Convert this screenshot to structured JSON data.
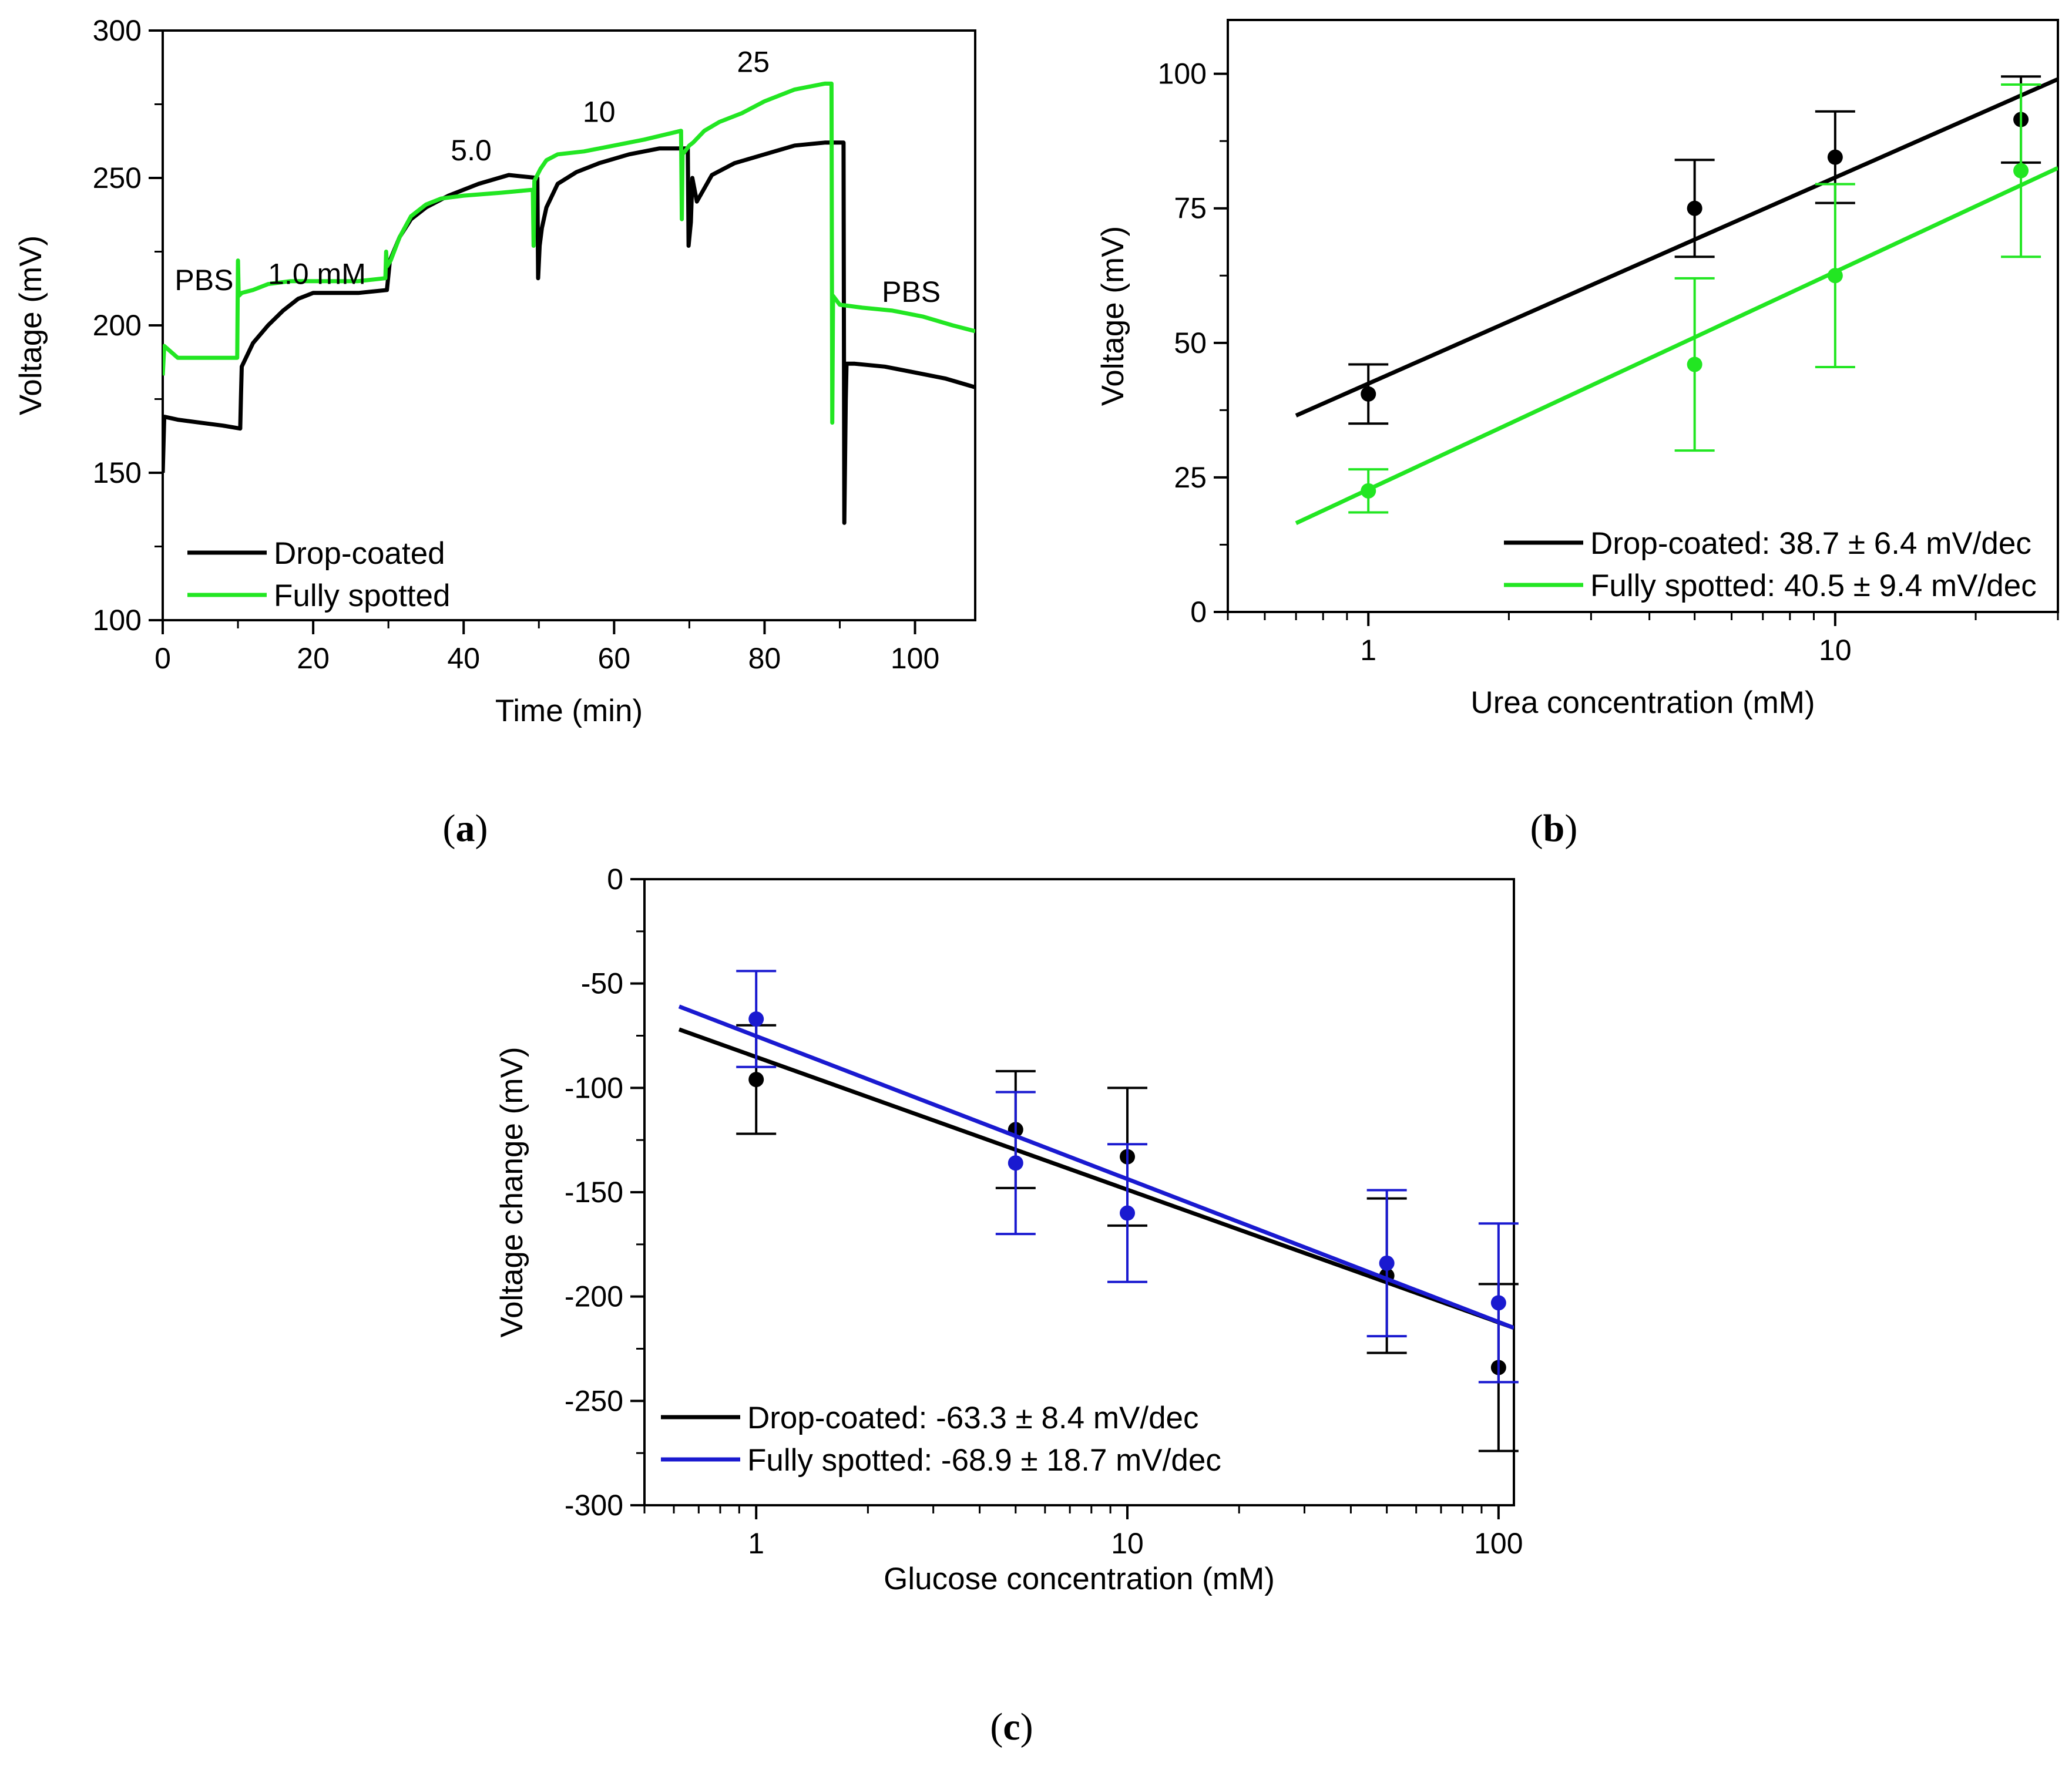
{
  "colors": {
    "drop_coated": "#000000",
    "fully_spotted_green": "#22e622",
    "fully_spotted_blue": "#1a1ad0"
  },
  "chart_data": [
    {
      "id": "a",
      "type": "line",
      "panel_label": "a",
      "title": "",
      "xlabel": "Time (min)",
      "ylabel": "Voltage (mV)",
      "xlim": [
        0,
        108
      ],
      "ylim": [
        100,
        300
      ],
      "xticks": [
        0,
        20,
        40,
        60,
        80,
        100
      ],
      "yticks": [
        100,
        150,
        200,
        250,
        300
      ],
      "legend_position": "bottom-left",
      "annotations": [
        {
          "text": "PBS",
          "x": 5.5,
          "y": 212
        },
        {
          "text": "1.0 mM",
          "x": 20.5,
          "y": 214
        },
        {
          "text": "5.0",
          "x": 41,
          "y": 256
        },
        {
          "text": "10",
          "x": 58,
          "y": 269
        },
        {
          "text": "25",
          "x": 78.5,
          "y": 286
        },
        {
          "text": "PBS",
          "x": 99.5,
          "y": 208
        }
      ],
      "series": [
        {
          "name": "Drop-coated",
          "color": "#000000",
          "x": [
            0,
            0.2,
            2,
            5,
            8,
            10.3,
            10.4,
            10.5,
            12,
            14,
            16,
            18,
            20,
            23,
            26,
            29.8,
            30.2,
            31.5,
            33,
            35,
            38,
            42,
            46,
            49.8,
            49.9,
            50.1,
            50.4,
            51,
            52.5,
            55,
            58,
            62,
            66,
            69.8,
            69.9,
            70.2,
            70.4,
            71,
            73,
            76,
            80,
            84,
            88,
            90.5,
            90.6,
            90.8,
            90.9,
            92,
            96,
            100,
            104,
            108
          ],
          "y": [
            150,
            169,
            168,
            167,
            166,
            165,
            176,
            186,
            194,
            200,
            205,
            209,
            211,
            211,
            211,
            212,
            222,
            230,
            236,
            240,
            244,
            248,
            251,
            250,
            216,
            227,
            233,
            240,
            248,
            252,
            255,
            258,
            260,
            260,
            227,
            235,
            250,
            242,
            251,
            255,
            258,
            261,
            262,
            262,
            133,
            175,
            187,
            187,
            186,
            184,
            182,
            179
          ]
        },
        {
          "name": "Fully spotted",
          "color": "#22e622",
          "x": [
            0,
            0.2,
            2,
            5,
            8,
            9.9,
            10,
            10.1,
            10.5,
            12,
            14,
            17,
            20,
            23,
            26,
            29.6,
            29.7,
            29.8,
            30.3,
            31.5,
            33,
            35,
            37,
            40,
            45,
            49.2,
            49.3,
            49.4,
            50.2,
            51,
            52.5,
            56,
            60,
            64,
            68.9,
            69.0,
            69.1,
            70.0,
            70.5,
            72,
            74,
            77,
            80,
            84,
            88,
            88.9,
            89.0,
            89.1,
            89.4,
            90,
            93,
            97,
            101,
            105,
            108
          ],
          "y": [
            183,
            193,
            189,
            189,
            189,
            189,
            222,
            210,
            211,
            212,
            214,
            215,
            215,
            215,
            215,
            216,
            225,
            220,
            222,
            230,
            237,
            241,
            243,
            244,
            245,
            246,
            227,
            249,
            253,
            256,
            258,
            259,
            261,
            263,
            266,
            236,
            258,
            261,
            262,
            266,
            269,
            272,
            276,
            280,
            282,
            282,
            167,
            210,
            209,
            207,
            206,
            205,
            203,
            200,
            198
          ]
        }
      ]
    },
    {
      "id": "b",
      "type": "scatter",
      "panel_label": "b",
      "title": "",
      "xlabel": "Urea concentration (mM)",
      "ylabel": "Voltage (mV)",
      "xscale": "log",
      "xlim": [
        0.5,
        30
      ],
      "ylim": [
        0,
        110
      ],
      "xticks": [
        1,
        10
      ],
      "yticks": [
        0,
        25,
        50,
        75,
        100
      ],
      "legend_position": "bottom-right",
      "series": [
        {
          "name": "Drop-coated: 38.7 ± 6.4 mV/dec",
          "color": "#000000",
          "x": [
            1,
            5,
            10,
            25
          ],
          "y": [
            40.5,
            75,
            84.5,
            91.5
          ],
          "err": [
            5.5,
            9,
            8.5,
            8
          ],
          "fit": {
            "x": [
              0.7,
              30
            ],
            "y": [
              36.5,
              99
            ]
          }
        },
        {
          "name": "Fully spotted: 40.5 ± 9.4 mV/dec",
          "color": "#22e622",
          "x": [
            1,
            5,
            10,
            25
          ],
          "y": [
            22.5,
            46,
            62.5,
            82
          ],
          "err": [
            4,
            16,
            17,
            16
          ],
          "fit": {
            "x": [
              0.7,
              30
            ],
            "y": [
              16.5,
              82.5
            ]
          }
        }
      ]
    },
    {
      "id": "c",
      "type": "scatter",
      "panel_label": "c",
      "title": "",
      "xlabel": "Glucose concentration (mM)",
      "ylabel": "Voltage change (mV)",
      "xscale": "log",
      "xlim": [
        0.5,
        110
      ],
      "ylim": [
        -300,
        0
      ],
      "xticks": [
        1,
        10,
        100
      ],
      "yticks": [
        0,
        -50,
        -100,
        -150,
        -200,
        -250,
        -300
      ],
      "legend_position": "bottom-left",
      "series": [
        {
          "name": "Drop-coated: -63.3 ± 8.4 mV/dec",
          "color": "#000000",
          "x": [
            1,
            5,
            10,
            50,
            100
          ],
          "y": [
            -96,
            -120,
            -133,
            -190,
            -234
          ],
          "err": [
            26,
            28,
            33,
            37,
            40
          ],
          "fit": {
            "x": [
              0.62,
              110
            ],
            "y": [
              -72,
              -215
            ]
          }
        },
        {
          "name": "Fully spotted: -68.9 ± 18.7 mV/dec",
          "color": "#1a1ad0",
          "x": [
            1,
            5,
            10,
            50,
            100
          ],
          "y": [
            -67,
            -136,
            -160,
            -184,
            -203
          ],
          "err": [
            23,
            34,
            33,
            35,
            38
          ],
          "fit": {
            "x": [
              0.62,
              110
            ],
            "y": [
              -61,
              -215
            ]
          }
        }
      ]
    }
  ]
}
